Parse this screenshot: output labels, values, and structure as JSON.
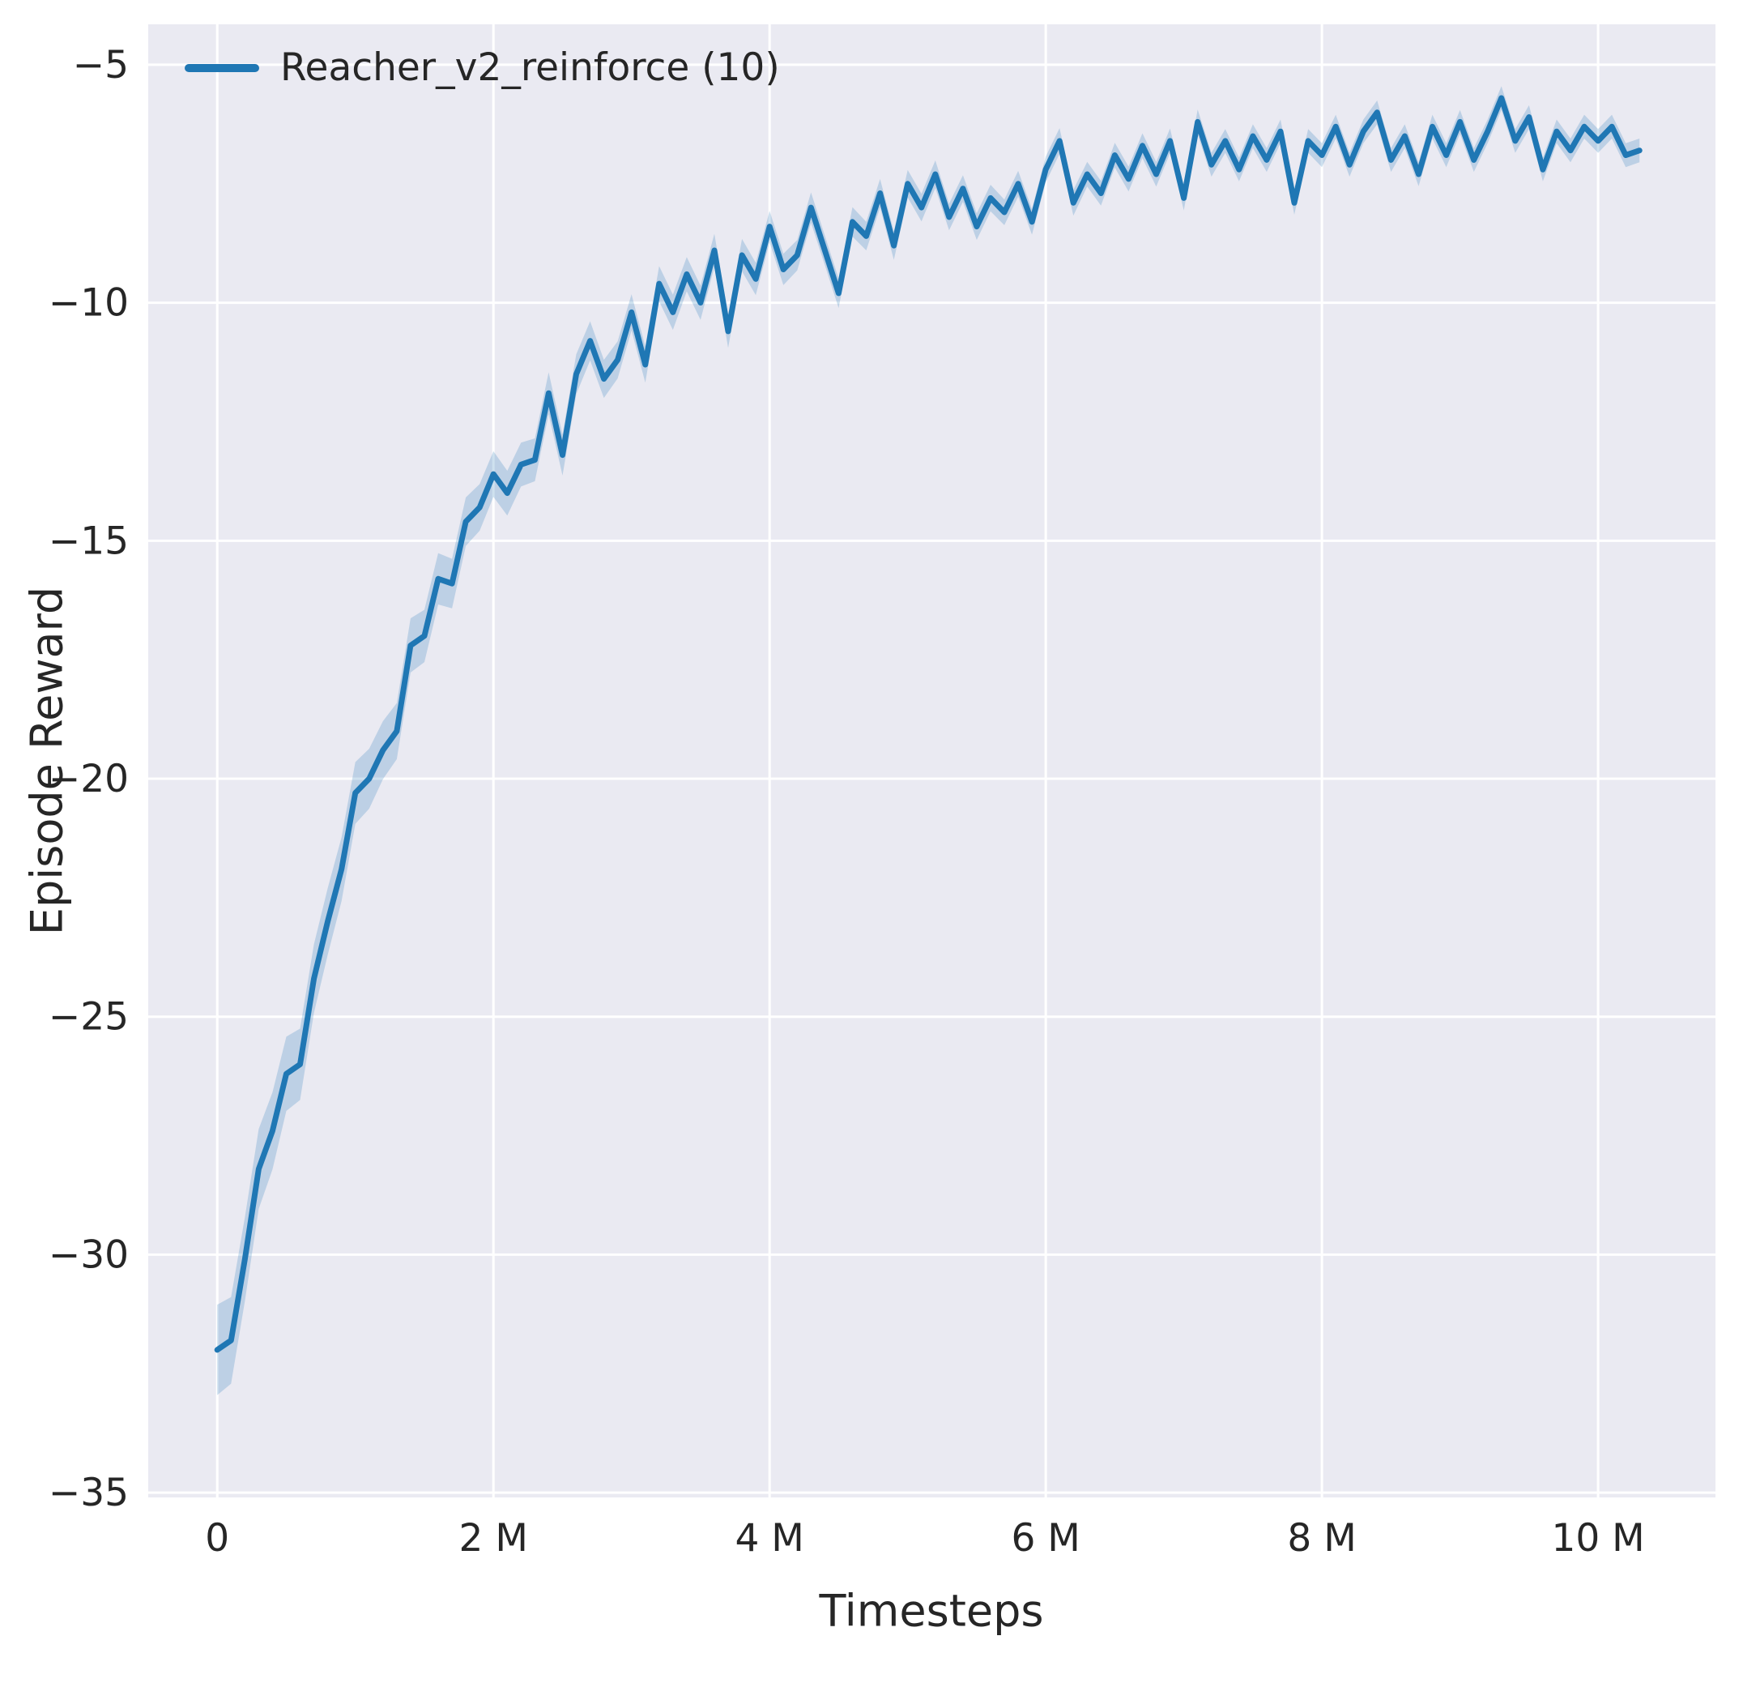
{
  "figure": {
    "background": "#ffffff",
    "plot_background": "#eaeaf2",
    "grid_color": "#ffffff"
  },
  "axes": {
    "xlabel": "Timesteps",
    "ylabel": "Episode Reward"
  },
  "legend": {
    "label": "Reacher_v2_reinforce (10)",
    "line_color": "#1f77b4"
  },
  "chart_data": {
    "type": "line",
    "title": "",
    "xlabel": "Timesteps",
    "ylabel": "Episode Reward",
    "legend": [
      "Reacher_v2_reinforce (10)"
    ],
    "legend_position": "upper left",
    "grid": true,
    "x_unit": "M",
    "xlim": [
      -0.5,
      10.85
    ],
    "ylim": [
      -35.1,
      -4.15
    ],
    "x_ticks": [
      {
        "value": 0,
        "label": "0"
      },
      {
        "value": 2,
        "label": "2 M"
      },
      {
        "value": 4,
        "label": "4 M"
      },
      {
        "value": 6,
        "label": "6 M"
      },
      {
        "value": 8,
        "label": "8 M"
      },
      {
        "value": 10,
        "label": "10 M"
      }
    ],
    "y_ticks": [
      {
        "value": -35,
        "label": "−35"
      },
      {
        "value": -30,
        "label": "−30"
      },
      {
        "value": -25,
        "label": "−25"
      },
      {
        "value": -20,
        "label": "−20"
      },
      {
        "value": -15,
        "label": "−15"
      },
      {
        "value": -10,
        "label": "−10"
      },
      {
        "value": -5,
        "label": "−5"
      }
    ],
    "series": [
      {
        "name": "Reacher_v2_reinforce (10)",
        "color": "#1f77b4",
        "band_color": "#1f77b4",
        "band_opacity": 0.22,
        "line_width": 7,
        "x_start": 0,
        "x_step": 0.1,
        "y": [
          -32.0,
          -31.8,
          -30.1,
          -28.2,
          -27.4,
          -26.2,
          -26.0,
          -24.2,
          -23.0,
          -21.9,
          -20.3,
          -20.0,
          -19.4,
          -19.0,
          -17.2,
          -17.0,
          -15.8,
          -15.9,
          -14.6,
          -14.3,
          -13.6,
          -14.0,
          -13.4,
          -13.3,
          -11.9,
          -13.2,
          -11.5,
          -10.8,
          -11.6,
          -11.2,
          -10.2,
          -11.3,
          -9.6,
          -10.2,
          -9.4,
          -10.0,
          -8.9,
          -10.6,
          -9.0,
          -9.5,
          -8.4,
          -9.3,
          -9.0,
          -8.0,
          -8.9,
          -9.8,
          -8.3,
          -8.6,
          -7.7,
          -8.8,
          -7.5,
          -8.0,
          -7.3,
          -8.2,
          -7.6,
          -8.4,
          -7.8,
          -8.1,
          -7.5,
          -8.3,
          -7.2,
          -6.6,
          -7.9,
          -7.3,
          -7.7,
          -6.9,
          -7.4,
          -6.7,
          -7.3,
          -6.6,
          -7.8,
          -6.2,
          -7.1,
          -6.6,
          -7.2,
          -6.5,
          -7.0,
          -6.4,
          -7.9,
          -6.6,
          -6.9,
          -6.3,
          -7.1,
          -6.4,
          -6.0,
          -7.0,
          -6.5,
          -7.3,
          -6.3,
          -6.9,
          -6.2,
          -7.0,
          -6.4,
          -5.7,
          -6.6,
          -6.1,
          -7.2,
          -6.4,
          -6.8,
          -6.3,
          -6.6,
          -6.3,
          -6.9,
          -6.8
        ],
        "band_halfwidth": [
          0.95,
          0.91,
          0.88,
          0.84,
          0.81,
          0.78,
          0.75,
          0.72,
          0.7,
          0.67,
          0.65,
          0.63,
          0.61,
          0.59,
          0.57,
          0.55,
          0.54,
          0.52,
          0.51,
          0.49,
          0.48,
          0.47,
          0.46,
          0.45,
          0.44,
          0.43,
          0.42,
          0.41,
          0.4,
          0.39,
          0.38,
          0.38,
          0.37,
          0.37,
          0.36,
          0.36,
          0.35,
          0.35,
          0.34,
          0.34,
          0.33,
          0.33,
          0.32,
          0.32,
          0.31,
          0.31,
          0.31,
          0.3,
          0.3,
          0.3,
          0.29,
          0.29,
          0.29,
          0.28,
          0.28,
          0.28,
          0.28,
          0.27,
          0.27,
          0.27,
          0.27,
          0.27,
          0.27,
          0.26,
          0.26,
          0.26,
          0.26,
          0.26,
          0.26,
          0.26,
          0.26,
          0.26,
          0.25,
          0.25,
          0.25,
          0.25,
          0.25,
          0.25,
          0.25,
          0.25,
          0.25,
          0.25,
          0.25,
          0.25,
          0.25,
          0.25,
          0.25,
          0.25,
          0.25,
          0.25,
          0.25,
          0.25,
          0.25,
          0.25,
          0.25,
          0.25,
          0.25,
          0.25,
          0.25,
          0.25,
          0.25,
          0.25,
          0.25,
          0.25
        ]
      }
    ]
  }
}
